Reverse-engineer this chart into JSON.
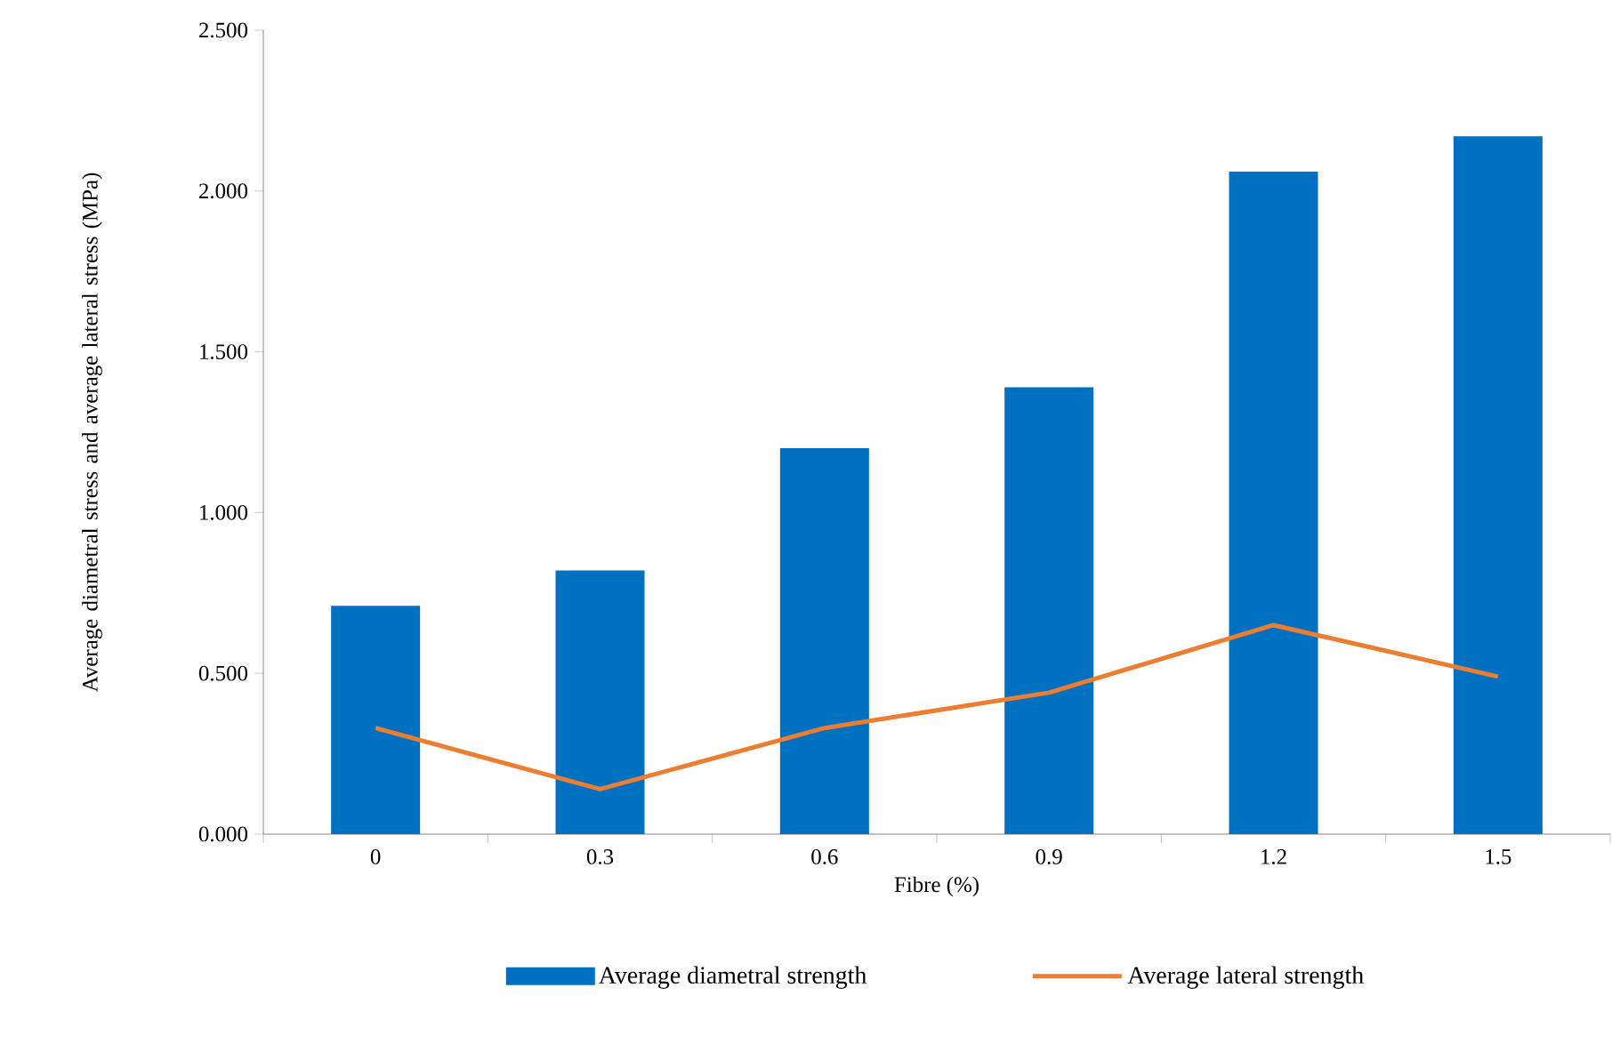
{
  "chart_data": {
    "type": "bar",
    "xlabel": "Fibre (%)",
    "ylabel": "Average diametral stress and average lateral stress (MPa)",
    "categories": [
      "0",
      "0.3",
      "0.6",
      "0.9",
      "1.2",
      "1.5"
    ],
    "series": [
      {
        "name": "Average diametral strength",
        "color": "#0070c0",
        "values": [
          0.71,
          0.82,
          1.2,
          1.39,
          2.06,
          2.17
        ]
      },
      {
        "name": "Average lateral strength",
        "type": "line",
        "color": "#ed7d31",
        "values": [
          0.33,
          0.14,
          0.33,
          0.44,
          0.65,
          0.49
        ]
      }
    ],
    "ylim": [
      0,
      2.5
    ],
    "yticks": [
      {
        "value": 0,
        "label": "0.000"
      },
      {
        "value": 0.5,
        "label": "0.500"
      },
      {
        "value": 1,
        "label": "1.000"
      },
      {
        "value": 1.5,
        "label": "1.500"
      },
      {
        "value": 2,
        "label": "2.000"
      },
      {
        "value": 2.5,
        "label": "2.500"
      }
    ],
    "legend": "bottom",
    "grid": false,
    "marker": "none",
    "line_style": "solid"
  }
}
